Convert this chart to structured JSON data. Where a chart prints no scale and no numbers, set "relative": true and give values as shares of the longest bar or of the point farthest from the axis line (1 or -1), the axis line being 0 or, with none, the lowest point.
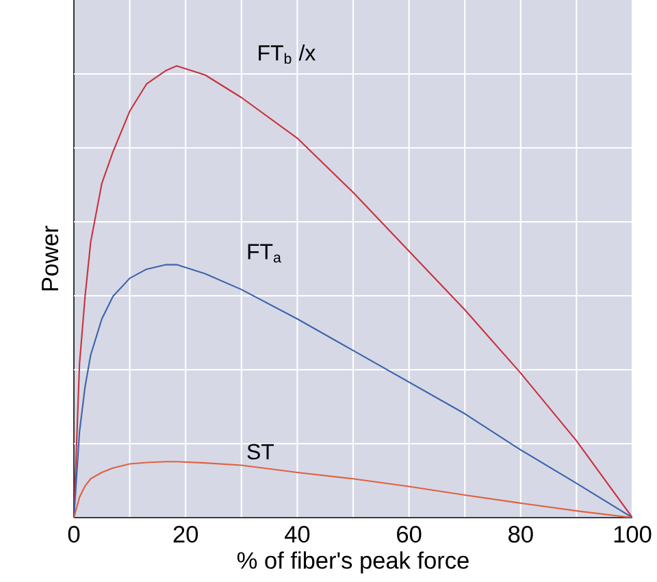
{
  "chart_data": {
    "type": "line",
    "relative": true,
    "xlabel": "% of fiber's peak force",
    "ylabel": "Power",
    "x": [
      0,
      1,
      2,
      3,
      5,
      7,
      10,
      13,
      16.5,
      18.4,
      23.5,
      30,
      40,
      50,
      60,
      70,
      80,
      90,
      100
    ],
    "xlim": [
      0,
      100
    ],
    "xticks": [
      0,
      {
        "value": 10,
        "label": null
      },
      20,
      {
        "value": 30,
        "label": null
      },
      40,
      {
        "value": 50,
        "label": null
      },
      60,
      {
        "value": 70,
        "label": null
      },
      80,
      {
        "value": 90,
        "label": null
      },
      100
    ],
    "grid": true,
    "series": [
      {
        "name": "FT$_{b}$ /x",
        "color": "#c8323c",
        "values": [
          0,
          0.34,
          0.49,
          0.61,
          0.74,
          0.81,
          0.9,
          0.96,
          0.99,
          1.0,
          0.98,
          0.93,
          0.84,
          0.72,
          0.59,
          0.46,
          0.32,
          0.17,
          0
        ]
      },
      {
        "name": "FT$_{a}$",
        "color": "#3c64aa",
        "values": [
          0,
          0.19,
          0.29,
          0.36,
          0.44,
          0.49,
          0.53,
          0.55,
          0.56,
          0.56,
          0.54,
          0.505,
          0.44,
          0.37,
          0.3,
          0.23,
          0.15,
          0.076,
          0
        ]
      },
      {
        "name": "ST",
        "color": "#e06040",
        "values": [
          0,
          0.045,
          0.07,
          0.086,
          0.1,
          0.11,
          0.119,
          0.122,
          0.124,
          0.124,
          0.121,
          0.116,
          0.1,
          0.086,
          0.069,
          0.05,
          0.032,
          0.015,
          0
        ]
      }
    ]
  }
}
